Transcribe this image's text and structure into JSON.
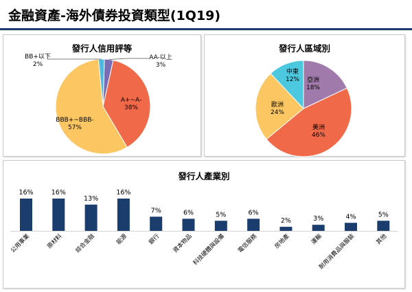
{
  "page": {
    "title": "金融資產-海外債券投資類型(1Q19)"
  },
  "chart_data": [
    {
      "type": "pie",
      "title": "發行人信用評等",
      "slices": [
        {
          "label": "AA-以上",
          "value": 3,
          "value_label": "3%",
          "color": "#7a6db3"
        },
        {
          "label": "A+~A-",
          "value": 38,
          "value_label": "38%",
          "color": "#f06a4a"
        },
        {
          "label": "BBB+~BBB-",
          "value": 57,
          "value_label": "57%",
          "color": "#fcc763"
        },
        {
          "label": "BB+以下",
          "value": 2,
          "value_label": "2%",
          "color": "#4fb8dc"
        }
      ]
    },
    {
      "type": "pie",
      "title": "發行人區域別",
      "slices": [
        {
          "label": "亞洲",
          "value": 18,
          "value_label": "18%",
          "color": "#a07aaa"
        },
        {
          "label": "美洲",
          "value": 46,
          "value_label": "46%",
          "color": "#f06a4a"
        },
        {
          "label": "歐洲",
          "value": 24,
          "value_label": "24%",
          "color": "#fcc763"
        },
        {
          "label": "中東",
          "value": 12,
          "value_label": "12%",
          "color": "#4cc8de"
        }
      ]
    },
    {
      "type": "bar",
      "title": "發行人產業別",
      "categories": [
        "公用事業",
        "原材料",
        "綜合金融",
        "能源",
        "銀行",
        "資本物品",
        "科技硬體與設備",
        "電信服務",
        "房地產",
        "運輸",
        "耐用消費品與服裝",
        "其他"
      ],
      "values": [
        16,
        16,
        13,
        16,
        7,
        6,
        5,
        6,
        2,
        3,
        4,
        5
      ],
      "value_labels": [
        "16%",
        "16%",
        "13%",
        "16%",
        "7%",
        "6%",
        "5%",
        "6%",
        "2%",
        "3%",
        "4%",
        "5%"
      ],
      "color": "#1b3d6e",
      "ylim": [
        0,
        16
      ],
      "grid": false
    }
  ]
}
